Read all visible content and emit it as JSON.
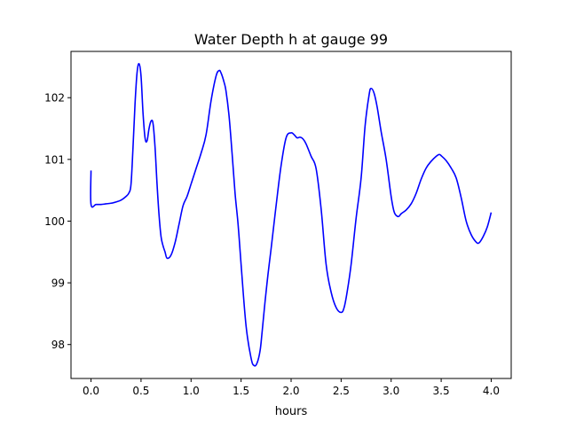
{
  "chart_data": {
    "type": "line",
    "title": "Water Depth h at gauge 99",
    "xlabel": "hours",
    "ylabel": "",
    "xlim": [
      -0.2,
      4.2
    ],
    "ylim": [
      97.45,
      102.75
    ],
    "xticks": [
      0.0,
      0.5,
      1.0,
      1.5,
      2.0,
      2.5,
      3.0,
      3.5,
      4.0
    ],
    "xtick_labels": [
      "0.0",
      "0.5",
      "1.0",
      "1.5",
      "2.0",
      "2.5",
      "3.0",
      "3.5",
      "4.0"
    ],
    "yticks": [
      98,
      99,
      100,
      101,
      102
    ],
    "ytick_labels": [
      "98",
      "99",
      "100",
      "101",
      "102"
    ],
    "grid": false,
    "series": [
      {
        "color": "#0000ff",
        "x": [
          0.0,
          0.0,
          0.05,
          0.1,
          0.15,
          0.2,
          0.25,
          0.3,
          0.35,
          0.38,
          0.4,
          0.42,
          0.44,
          0.46,
          0.48,
          0.5,
          0.52,
          0.54,
          0.56,
          0.58,
          0.6,
          0.62,
          0.64,
          0.66,
          0.68,
          0.7,
          0.72,
          0.74,
          0.76,
          0.8,
          0.84,
          0.88,
          0.92,
          0.96,
          1.0,
          1.05,
          1.1,
          1.15,
          1.2,
          1.25,
          1.28,
          1.3,
          1.33,
          1.35,
          1.38,
          1.41,
          1.44,
          1.47,
          1.5,
          1.55,
          1.6,
          1.63,
          1.66,
          1.69,
          1.71,
          1.74,
          1.77,
          1.8,
          1.85,
          1.9,
          1.95,
          2.0,
          2.03,
          2.06,
          2.09,
          2.12,
          2.15,
          2.2,
          2.25,
          2.3,
          2.35,
          2.4,
          2.45,
          2.5,
          2.53,
          2.56,
          2.6,
          2.65,
          2.7,
          2.74,
          2.78,
          2.8,
          2.83,
          2.86,
          2.9,
          2.95,
          3.0,
          3.03,
          3.06,
          3.08,
          3.1,
          3.15,
          3.2,
          3.25,
          3.3,
          3.35,
          3.4,
          3.45,
          3.48,
          3.5,
          3.55,
          3.6,
          3.65,
          3.7,
          3.75,
          3.8,
          3.85,
          3.88,
          3.92,
          3.96,
          4.0
        ],
        "values": [
          100.82,
          100.27,
          100.27,
          100.27,
          100.28,
          100.29,
          100.31,
          100.34,
          100.4,
          100.46,
          100.6,
          101.2,
          101.9,
          102.4,
          102.55,
          102.35,
          101.75,
          101.35,
          101.3,
          101.5,
          101.62,
          101.58,
          101.2,
          100.6,
          100.1,
          99.75,
          99.6,
          99.5,
          99.4,
          99.45,
          99.65,
          99.95,
          100.25,
          100.4,
          100.6,
          100.85,
          101.1,
          101.4,
          101.95,
          102.35,
          102.44,
          102.4,
          102.25,
          102.1,
          101.7,
          101.1,
          100.45,
          99.95,
          99.3,
          98.3,
          97.78,
          97.66,
          97.7,
          97.9,
          98.2,
          98.7,
          99.15,
          99.55,
          100.25,
          100.9,
          101.35,
          101.43,
          101.4,
          101.35,
          101.36,
          101.33,
          101.25,
          101.05,
          100.85,
          100.2,
          99.3,
          98.85,
          98.6,
          98.52,
          98.6,
          98.85,
          99.3,
          100.05,
          100.7,
          101.55,
          102.05,
          102.15,
          102.07,
          101.85,
          101.45,
          101.0,
          100.4,
          100.15,
          100.08,
          100.08,
          100.12,
          100.18,
          100.28,
          100.45,
          100.68,
          100.86,
          100.97,
          101.05,
          101.08,
          101.06,
          100.98,
          100.86,
          100.7,
          100.38,
          100.0,
          99.78,
          99.66,
          99.65,
          99.75,
          99.9,
          100.14
        ]
      }
    ]
  }
}
